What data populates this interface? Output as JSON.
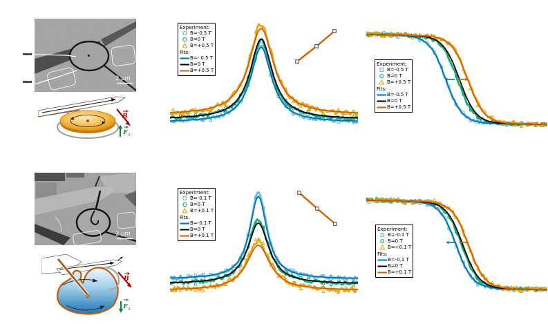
{
  "figure": {
    "palette": {
      "background": "#FFFFFF",
      "exp_blue": "#56B4E9",
      "exp_green": "#009E73",
      "exp_orange": "#E69F00",
      "fit_blue": "#0072B2",
      "fit_black": "#000000",
      "fit_orange": "#D55E00",
      "schematic_red": "#AA0000",
      "schematic_green": "#157F3D",
      "disk_orange": "#E8920A",
      "disk_blue": "#4A94C8"
    }
  },
  "rows": [
    {
      "sem": {
        "scale_label": "2 μm"
      },
      "schematic": {
        "b_label": "B",
        "f_label": "F",
        "f_sub": "⊥",
        "f_direction": "up"
      }
    },
    {
      "sem": {
        "scale_label": "2 μm"
      },
      "schematic": {
        "b_label": "B",
        "f_label": "F",
        "f_sub": "⊥",
        "f_direction": "down"
      }
    }
  ],
  "legends": [
    {
      "title_exp": "Experiment:",
      "entries_exp": [
        {
          "marker": "square",
          "color": "#56B4E9",
          "label": "B=-0.5 T"
        },
        {
          "marker": "circle",
          "color": "#009E73",
          "label": "B=0 T"
        },
        {
          "marker": "triangle",
          "color": "#E69F00",
          "label": "B=+0.5 T"
        }
      ],
      "title_fits": "Fits:",
      "entries_fits": [
        {
          "color": "#0072B2",
          "label": "B=- 0.5 T"
        },
        {
          "color": "#000000",
          "label": "B=0 T"
        },
        {
          "color": "#D55E00",
          "label": "B=+0.5 T"
        }
      ]
    },
    {
      "title_exp": "Experiment:",
      "entries_exp": [
        {
          "marker": "square",
          "color": "#56B4E9",
          "label": "B=-0.5 T"
        },
        {
          "marker": "circle",
          "color": "#009E73",
          "label": "B=0 T"
        },
        {
          "marker": "triangle",
          "color": "#E69F00",
          "label": "B=+0.5 T"
        }
      ],
      "title_fits": "Fits:",
      "entries_fits": [
        {
          "color": "#0072B2",
          "label": "B=-0.5 T"
        },
        {
          "color": "#000000",
          "label": "B=0 T"
        },
        {
          "color": "#D55E00",
          "label": "B=+0.5 T"
        }
      ]
    },
    {
      "title_exp": "Experiment:",
      "entries_exp": [
        {
          "marker": "square",
          "color": "#56B4E9",
          "label": "B=-0.1 T"
        },
        {
          "marker": "circle",
          "color": "#009E73",
          "label": "B=0 T"
        },
        {
          "marker": "triangle",
          "color": "#E69F00",
          "label": "B=+0.1 T"
        }
      ],
      "title_fits": "Fits:",
      "entries_fits": [
        {
          "color": "#0072B2",
          "label": "B=-0.1 T"
        },
        {
          "color": "#000000",
          "label": "B=0 T"
        },
        {
          "color": "#D55E00",
          "label": "B=+0.1 T"
        }
      ]
    },
    {
      "title_exp": "Experiment:",
      "entries_exp": [
        {
          "marker": "square",
          "color": "#56B4E9",
          "label": "B=-0.1 T"
        },
        {
          "marker": "circle",
          "color": "#009E73",
          "label": "B=0 T"
        },
        {
          "marker": "triangle",
          "color": "#E69F00",
          "label": "B=+0.1 T"
        }
      ],
      "title_fits": "Fits:",
      "entries_fits": [
        {
          "color": "#0072B2",
          "label": "B=-0.1 T"
        },
        {
          "color": "#000000",
          "label": "B=0 T"
        },
        {
          "color": "#D55E00",
          "label": "B=+0.1 T"
        }
      ]
    }
  ],
  "chart_data": [
    {
      "id": "peak-top",
      "type": "line",
      "model": "lorentzian",
      "note": "Driven resonance amplitude vs frequency; no axis labels visible; coords normalized 0-1, y from top",
      "tilt": 0,
      "series": [
        {
          "name": "Experiment B=-0.5 T",
          "role": "experiment",
          "marker": "square",
          "color": "#56B4E9",
          "center": 0.485,
          "hwhm": 0.068,
          "peak_y": 0.3,
          "base_y": 0.905,
          "noise": 0.016,
          "seed": 11
        },
        {
          "name": "Experiment B=0 T",
          "role": "experiment",
          "marker": "circle",
          "color": "#009E73",
          "center": 0.485,
          "hwhm": 0.071,
          "peak_y": 0.262,
          "base_y": 0.882,
          "noise": 0.015,
          "seed": 22
        },
        {
          "name": "Experiment B=+0.5 T",
          "role": "experiment",
          "marker": "triangle",
          "color": "#E69F00",
          "center": 0.485,
          "hwhm": 0.08,
          "peak_y": 0.135,
          "base_y": 0.85,
          "noise": 0.02,
          "seed": 33
        },
        {
          "name": "Fit B=-0.5 T",
          "role": "fit",
          "color": "#0072B2",
          "center": 0.485,
          "hwhm": 0.068,
          "peak_y": 0.315,
          "base_y": 0.903
        },
        {
          "name": "Fit B=0 T",
          "role": "fit",
          "color": "#000000",
          "center": 0.485,
          "hwhm": 0.072,
          "peak_y": 0.25,
          "base_y": 0.88
        },
        {
          "name": "Fit B=+0.5 T",
          "role": "fit",
          "color": "#D55E00",
          "center": 0.485,
          "hwhm": 0.08,
          "peak_y": 0.168,
          "base_y": 0.845
        }
      ]
    },
    {
      "id": "inset-top",
      "type": "line",
      "note": "Inset: fitted shift vs B, increasing line with 3 points",
      "color": "#D55E00",
      "points": [
        [
          0.095,
          0.828
        ],
        [
          0.473,
          0.484
        ],
        [
          0.824,
          0.141
        ]
      ]
    },
    {
      "id": "phase-top",
      "type": "line",
      "model": "sigmoid",
      "note": "Phase response vs frequency (descending step); no axis labels visible",
      "top_y": 0.157,
      "bot_y": 0.89,
      "s": 0.045,
      "tilt": 0.025,
      "series": [
        {
          "name": "Experiment B=-0.5 T",
          "role": "experiment",
          "marker": "square",
          "color": "#56B4E9",
          "center": 0.439,
          "noise": 0.014,
          "seed": 44
        },
        {
          "name": "Experiment B=0 T",
          "role": "experiment",
          "marker": "circle",
          "color": "#009E73",
          "center": 0.504,
          "noise": 0.013,
          "seed": 55
        },
        {
          "name": "Experiment B=+0.5 T",
          "role": "experiment",
          "marker": "triangle",
          "color": "#E69F00",
          "center": 0.561,
          "noise": 0.018,
          "seed": 66
        },
        {
          "name": "Fit B=-0.5 T",
          "role": "fit",
          "color": "#0072B2",
          "center": 0.439
        },
        {
          "name": "Fit B=0 T",
          "role": "fit",
          "color": "#000000",
          "center": 0.515
        },
        {
          "name": "Fit B=+0.5 T",
          "role": "fit",
          "color": "#D55E00",
          "center": 0.561
        }
      ],
      "arrows": [
        {
          "x1": 0.489,
          "x2": 0.448,
          "y": 0.523,
          "color": "#0072B2"
        },
        {
          "x1": 0.506,
          "x2": 0.547,
          "y": 0.523,
          "color": "#D55E00"
        }
      ]
    },
    {
      "id": "peak-bottom",
      "type": "line",
      "model": "lorentzian",
      "note": "Driven resonance amplitude vs frequency, second device; blue tallest",
      "tilt": 0,
      "series": [
        {
          "name": "Experiment B=-0.1 T",
          "role": "experiment",
          "marker": "square",
          "color": "#56B4E9",
          "center": 0.47,
          "hwhm": 0.055,
          "peak_y": 0.18,
          "base_y": 0.862,
          "noise": 0.015,
          "seed": 77
        },
        {
          "name": "Experiment B=0 T",
          "role": "experiment",
          "marker": "circle",
          "color": "#009E73",
          "center": 0.47,
          "hwhm": 0.066,
          "peak_y": 0.398,
          "base_y": 0.9,
          "noise": 0.015,
          "seed": 88
        },
        {
          "name": "Experiment B=+0.1 T",
          "role": "experiment",
          "marker": "triangle",
          "color": "#E69F00",
          "center": 0.47,
          "hwhm": 0.076,
          "peak_y": 0.56,
          "base_y": 0.952,
          "noise": 0.02,
          "seed": 99
        },
        {
          "name": "Fit B=-0.1 T",
          "role": "fit",
          "color": "#0072B2",
          "center": 0.47,
          "hwhm": 0.056,
          "peak_y": 0.212,
          "base_y": 0.86
        },
        {
          "name": "Fit B=0 T",
          "role": "fit",
          "color": "#000000",
          "center": 0.47,
          "hwhm": 0.068,
          "peak_y": 0.42,
          "base_y": 0.898
        },
        {
          "name": "Fit B=+0.1 T",
          "role": "fit",
          "color": "#D55E00",
          "center": 0.47,
          "hwhm": 0.076,
          "peak_y": 0.594,
          "base_y": 0.948
        }
      ]
    },
    {
      "id": "inset-bottom",
      "type": "line",
      "note": "Inset: fitted shift vs B, decreasing line with 3 points",
      "color": "#D55E00",
      "points": [
        [
          0.135,
          0.141
        ],
        [
          0.486,
          0.5
        ],
        [
          0.838,
          0.844
        ]
      ]
    },
    {
      "id": "phase-bottom",
      "type": "line",
      "model": "sigmoid",
      "note": "Phase response vs frequency, second device",
      "top_y": 0.165,
      "bot_y": 0.852,
      "s": 0.045,
      "tilt": 0.025,
      "series": [
        {
          "name": "Experiment B=-0.1 T",
          "role": "experiment",
          "marker": "square",
          "color": "#56B4E9",
          "center": 0.496,
          "noise": 0.014,
          "seed": 12
        },
        {
          "name": "Experiment B=0 T",
          "role": "experiment",
          "marker": "circle",
          "color": "#009E73",
          "center": 0.527,
          "noise": 0.013,
          "seed": 23
        },
        {
          "name": "Experiment B=+0.1 T",
          "role": "experiment",
          "marker": "triangle",
          "color": "#E69F00",
          "center": 0.565,
          "noise": 0.018,
          "seed": 34
        },
        {
          "name": "Fit B=-0.1 T",
          "role": "fit",
          "color": "#0072B2",
          "center": 0.496
        },
        {
          "name": "Fit B=0 T",
          "role": "fit",
          "color": "#000000",
          "center": 0.534
        },
        {
          "name": "Fit B=+0.1 T",
          "role": "fit",
          "color": "#D55E00",
          "center": 0.565
        }
      ],
      "arrows": [
        {
          "x1": 0.496,
          "x2": 0.455,
          "y": 0.489,
          "color": "#0072B2"
        },
        {
          "x1": 0.513,
          "x2": 0.554,
          "y": 0.489,
          "color": "#D55E00"
        }
      ]
    }
  ]
}
